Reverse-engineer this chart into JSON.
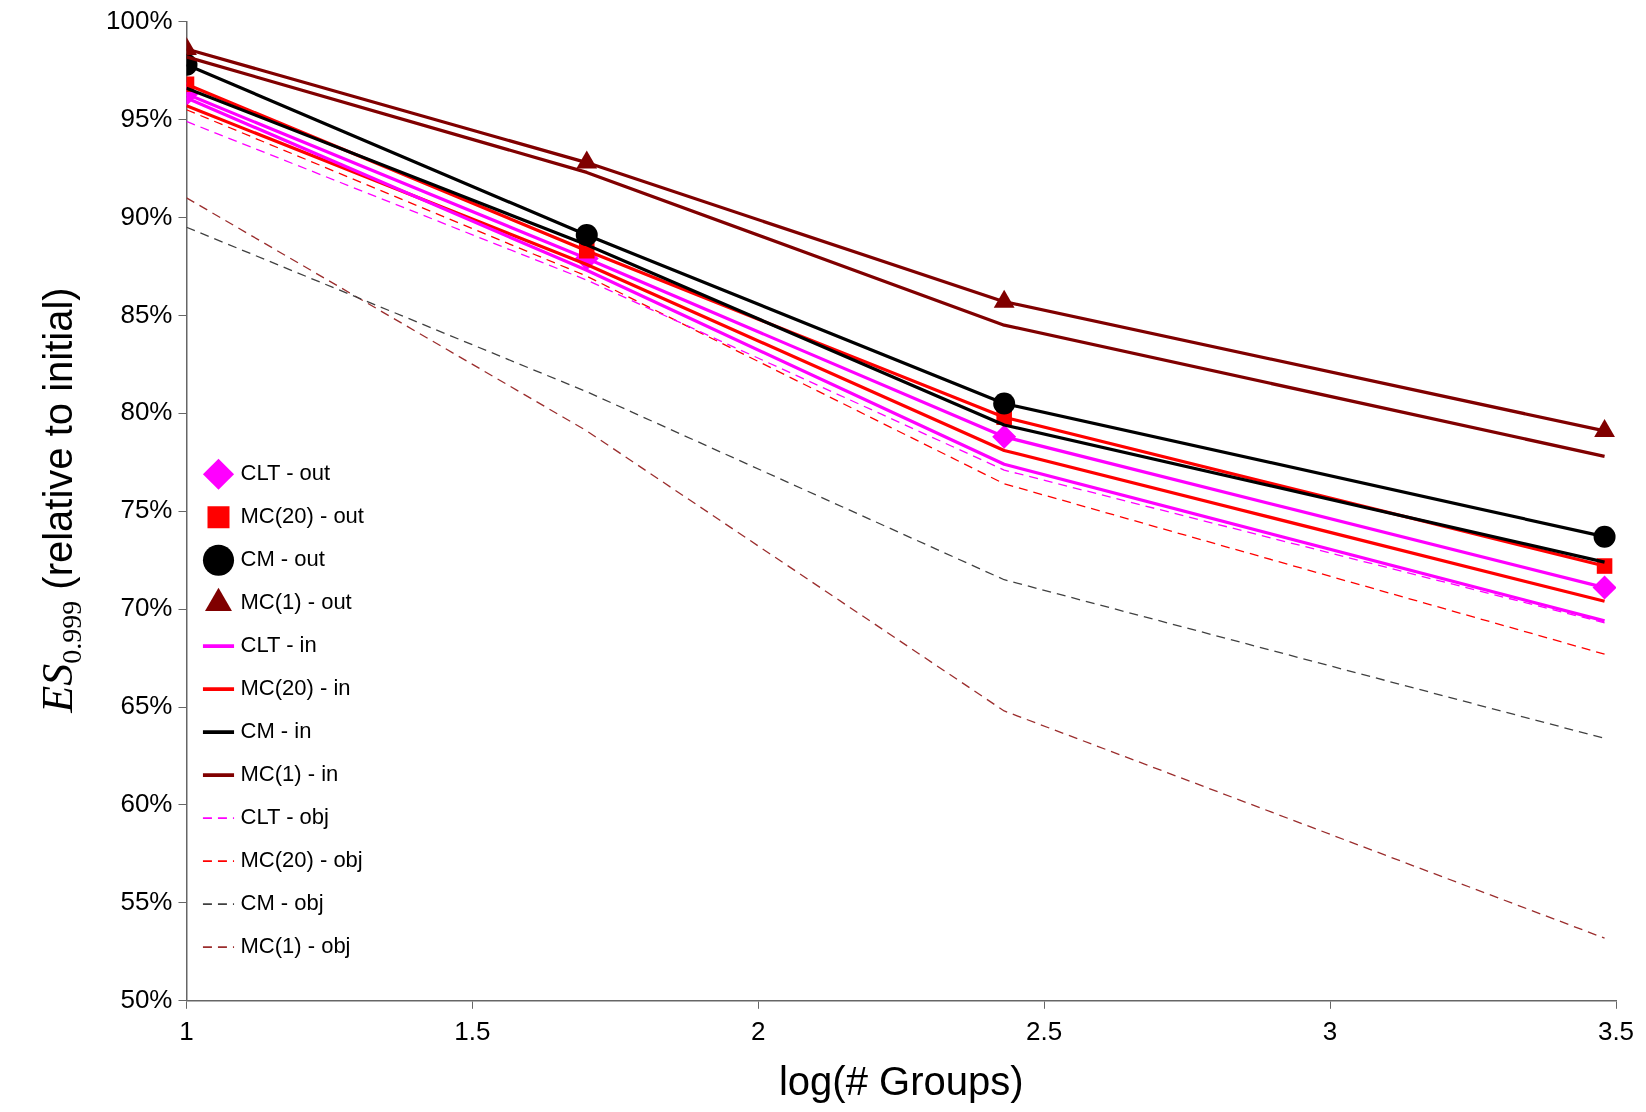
{
  "chart_data": {
    "type": "line",
    "xlabel": "log(# Groups)",
    "ylabel": "ES$_{0.999}$ (relative to initial)",
    "x": [
      1,
      1.7,
      2.43,
      3.48
    ],
    "xlim": [
      1,
      3.5
    ],
    "xticks": [
      1,
      1.5,
      2,
      2.5,
      3,
      3.5
    ],
    "ylim": [
      50,
      100
    ],
    "yticks": [
      {
        "value": 50,
        "label": "50%"
      },
      {
        "value": 55,
        "label": "55%"
      },
      {
        "value": 60,
        "label": "60%"
      },
      {
        "value": 65,
        "label": "65%"
      },
      {
        "value": 70,
        "label": "70%"
      },
      {
        "value": 75,
        "label": "75%"
      },
      {
        "value": 80,
        "label": "80%"
      },
      {
        "value": 85,
        "label": "85%"
      },
      {
        "value": 90,
        "label": "90%"
      },
      {
        "value": 95,
        "label": "95%"
      },
      {
        "value": 100,
        "label": "100%"
      }
    ],
    "grid": false,
    "legend": "bottom left",
    "series": [
      {
        "name": "CLT - out",
        "color": "#ff00ff",
        "marker": "diamond",
        "line_style": "solid",
        "values": [
          96.3,
          87.9,
          78.8,
          71.1
        ]
      },
      {
        "name": "MC(20) - out",
        "color": "#ff0000",
        "marker": "square",
        "line_style": "solid",
        "values": [
          96.8,
          88.3,
          79.8,
          72.2
        ]
      },
      {
        "name": "CM - out",
        "color": "#000000",
        "marker": "circle",
        "line_style": "solid",
        "values": [
          97.8,
          89.1,
          80.5,
          73.7
        ]
      },
      {
        "name": "MC(1) - out",
        "color": "#800000",
        "marker": "triangle",
        "line_style": "solid",
        "values": [
          98.6,
          92.8,
          85.7,
          79.1
        ]
      },
      {
        "name": "CLT - in",
        "color": "#ff00ff",
        "marker": "none",
        "line_style": "solid",
        "values": [
          96.1,
          87.3,
          77.4,
          69.4
        ]
      },
      {
        "name": "MC(20) - in",
        "color": "#ff0000",
        "marker": "none",
        "line_style": "solid",
        "values": [
          95.7,
          87.6,
          78.1,
          70.4
        ]
      },
      {
        "name": "CM - in",
        "color": "#000000",
        "marker": "none",
        "line_style": "solid",
        "values": [
          96.6,
          88.6,
          79.4,
          72.4
        ]
      },
      {
        "name": "MC(1) - in",
        "color": "#800000",
        "marker": "none",
        "line_style": "solid",
        "values": [
          98.2,
          92.3,
          84.5,
          77.8
        ]
      },
      {
        "name": "CLT - obj",
        "color": "#ff00ff",
        "marker": "none",
        "line_style": "dashed",
        "values": [
          94.9,
          86.8,
          77.1,
          69.3
        ]
      },
      {
        "name": "MC(20) - obj",
        "color": "#ff0000",
        "marker": "none",
        "line_style": "dashed",
        "values": [
          95.5,
          87.0,
          76.4,
          67.7
        ]
      },
      {
        "name": "CM - obj",
        "color": "#404040",
        "marker": "none",
        "line_style": "dashed",
        "values": [
          89.5,
          81.1,
          71.5,
          63.4
        ]
      },
      {
        "name": "MC(1) - obj",
        "color": "#9b2d2d",
        "marker": "none",
        "line_style": "dashed",
        "values": [
          91.0,
          79.1,
          64.8,
          53.2
        ]
      }
    ]
  }
}
